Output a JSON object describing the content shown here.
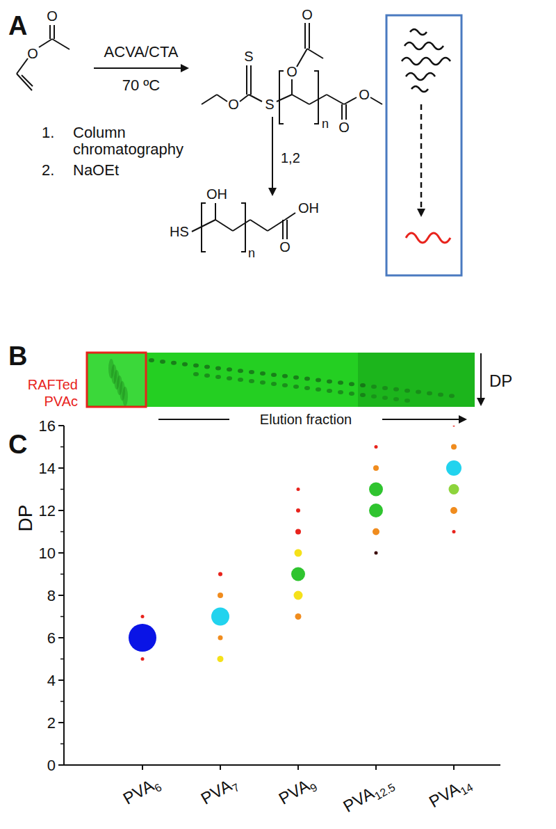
{
  "panel_labels": [
    "A",
    "B",
    "C"
  ],
  "panel_a": {
    "reagent": "ACVA/CTA",
    "temperature": "70 ºC",
    "steps": [
      {
        "number": "1.",
        "text": "Column chromatography"
      },
      {
        "number": "2.",
        "text": "NaOEt"
      }
    ],
    "step_arrow_label": "1,2",
    "structures": [
      {
        "atoms": [
          "O",
          "O"
        ]
      },
      {
        "atoms": [
          "S",
          "O",
          "S",
          "O",
          "O",
          "n",
          "O",
          "O"
        ]
      },
      {
        "atoms": [
          "HS",
          "OH",
          "n",
          "O",
          "OH"
        ]
      }
    ]
  },
  "panel_b": {
    "lane_label": [
      "RAFTed",
      "PVAc"
    ],
    "direction_label": "DP",
    "axis_label": "Elution fraction"
  },
  "chart_data": {
    "type": "bubble",
    "y_label": "DP",
    "categories": [
      "PVA6",
      "PVA7",
      "PVA9",
      "PVA12.5",
      "PVA14"
    ],
    "ylim": [
      0,
      16
    ],
    "yticks": [
      0,
      2,
      4,
      6,
      8,
      10,
      12,
      14,
      16
    ],
    "groups": [
      {
        "values": [
          7,
          6,
          5
        ],
        "sizes": [
          5,
          40,
          5
        ],
        "colors": [
          "#e8231c",
          "#0a14e6",
          "#e8231c"
        ]
      },
      {
        "values": [
          9,
          8,
          7,
          6,
          5
        ],
        "sizes": [
          6,
          8,
          26,
          7,
          9
        ],
        "colors": [
          "#e8231c",
          "#f08c1e",
          "#22d3ee",
          "#f08c1e",
          "#f5e11a"
        ]
      },
      {
        "values": [
          13,
          12,
          11,
          10,
          9,
          8,
          7
        ],
        "sizes": [
          5,
          6,
          8,
          11,
          20,
          13,
          9
        ],
        "colors": [
          "#e8231c",
          "#e8231c",
          "#e8231c",
          "#f5e11a",
          "#2fc42f",
          "#f5e11a",
          "#f08c1e"
        ]
      },
      {
        "values": [
          15,
          14,
          13,
          12,
          11,
          10
        ],
        "sizes": [
          5,
          8,
          20,
          20,
          10,
          5
        ],
        "colors": [
          "#e8231c",
          "#f08c1e",
          "#2fc42f",
          "#2fc42f",
          "#f08c1e",
          "#3b0a0a"
        ]
      },
      {
        "values": [
          16,
          15,
          14,
          13,
          12,
          11
        ],
        "sizes": [
          3,
          8,
          22,
          15,
          10,
          5
        ],
        "colors": [
          "#e8231c",
          "#f08c1e",
          "#22d3ee",
          "#8dd43c",
          "#f08c1e",
          "#e8231c"
        ]
      }
    ]
  }
}
